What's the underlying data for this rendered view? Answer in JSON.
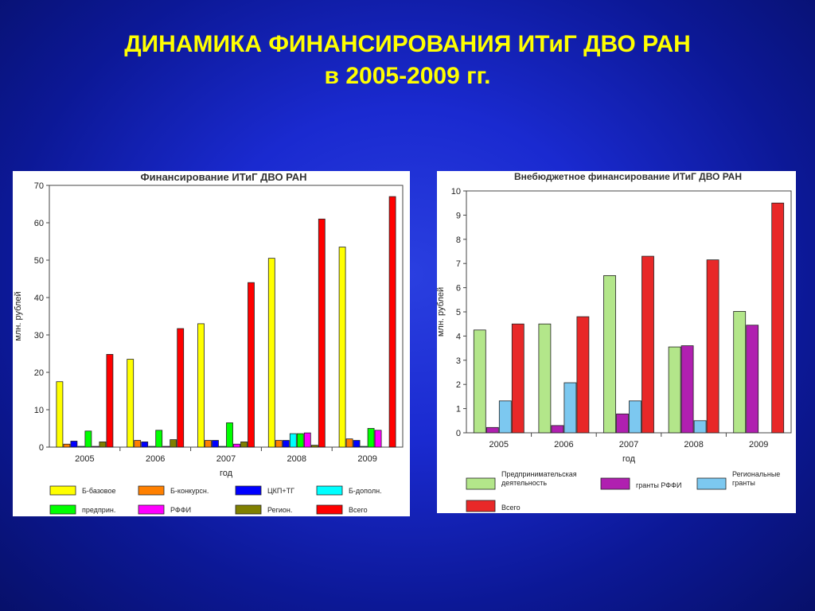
{
  "slide": {
    "title_line1": "ДИНАМИКА  ФИНАНСИРОВАНИЯ  ИТиГ ДВО РАН",
    "title_line2": "в 2005-2009 гг."
  },
  "colors": {
    "title": "#ffff00",
    "background": "#1a2ad0"
  },
  "chart_data": [
    {
      "type": "bar",
      "title": "Финансирование ИТиГ ДВО РАН",
      "xlabel": "год",
      "ylabel": "млн. рублей",
      "ylim": [
        0,
        70
      ],
      "yticks": [
        0,
        10,
        20,
        30,
        40,
        50,
        60,
        70
      ],
      "categories": [
        "2005",
        "2006",
        "2007",
        "2008",
        "2009"
      ],
      "legend_position": "bottom",
      "series": [
        {
          "name": "Б-базовое",
          "color": "#ffff00",
          "values": [
            17.5,
            23.5,
            33,
            50.5,
            53.5
          ]
        },
        {
          "name": "Б-конкурсн.",
          "color": "#ff8000",
          "values": [
            0.8,
            1.8,
            1.8,
            1.8,
            2.2
          ]
        },
        {
          "name": "ЦКП+ТГ",
          "color": "#0000ff",
          "values": [
            1.6,
            1.4,
            1.8,
            1.8,
            1.8
          ]
        },
        {
          "name": "Б-дополн.",
          "color": "#00ffff",
          "values": [
            0.2,
            0.2,
            0.2,
            3.6,
            0.2
          ]
        },
        {
          "name": "предприн.",
          "color": "#00ff00",
          "values": [
            4.3,
            4.5,
            6.5,
            3.6,
            5
          ]
        },
        {
          "name": "РФФИ",
          "color": "#ff00ff",
          "values": [
            0.2,
            0.2,
            0.8,
            3.8,
            4.5
          ]
        },
        {
          "name": "Регион.",
          "color": "#808000",
          "values": [
            1.4,
            2.0,
            1.4,
            0.5,
            0
          ]
        },
        {
          "name": "Всего",
          "color": "#ff0000",
          "values": [
            24.8,
            31.7,
            44,
            61,
            67
          ]
        }
      ]
    },
    {
      "type": "bar",
      "title": "Внебюджетное финансирование ИТиГ ДВО РАН",
      "xlabel": "год",
      "ylabel": "млн. рублей",
      "ylim": [
        0,
        10
      ],
      "yticks": [
        0,
        1,
        2,
        3,
        4,
        5,
        6,
        7,
        8,
        9,
        10
      ],
      "categories": [
        "2005",
        "2006",
        "2007",
        "2008",
        "2009"
      ],
      "legend_position": "bottom",
      "series": [
        {
          "name": "Предпринимательская деятельность",
          "color": "#b3e68a",
          "values": [
            4.25,
            4.5,
            6.5,
            3.55,
            5.02
          ]
        },
        {
          "name": "гранты РФФИ",
          "color": "#b020b0",
          "values": [
            0.22,
            0.3,
            0.78,
            3.6,
            4.45
          ]
        },
        {
          "name": "Региональные гранты",
          "color": "#7cc8f0",
          "values": [
            1.32,
            2.07,
            1.32,
            0.5,
            0
          ]
        },
        {
          "name": "Всего",
          "color": "#e82828",
          "values": [
            4.5,
            4.8,
            7.3,
            7.15,
            9.5
          ]
        }
      ]
    }
  ]
}
